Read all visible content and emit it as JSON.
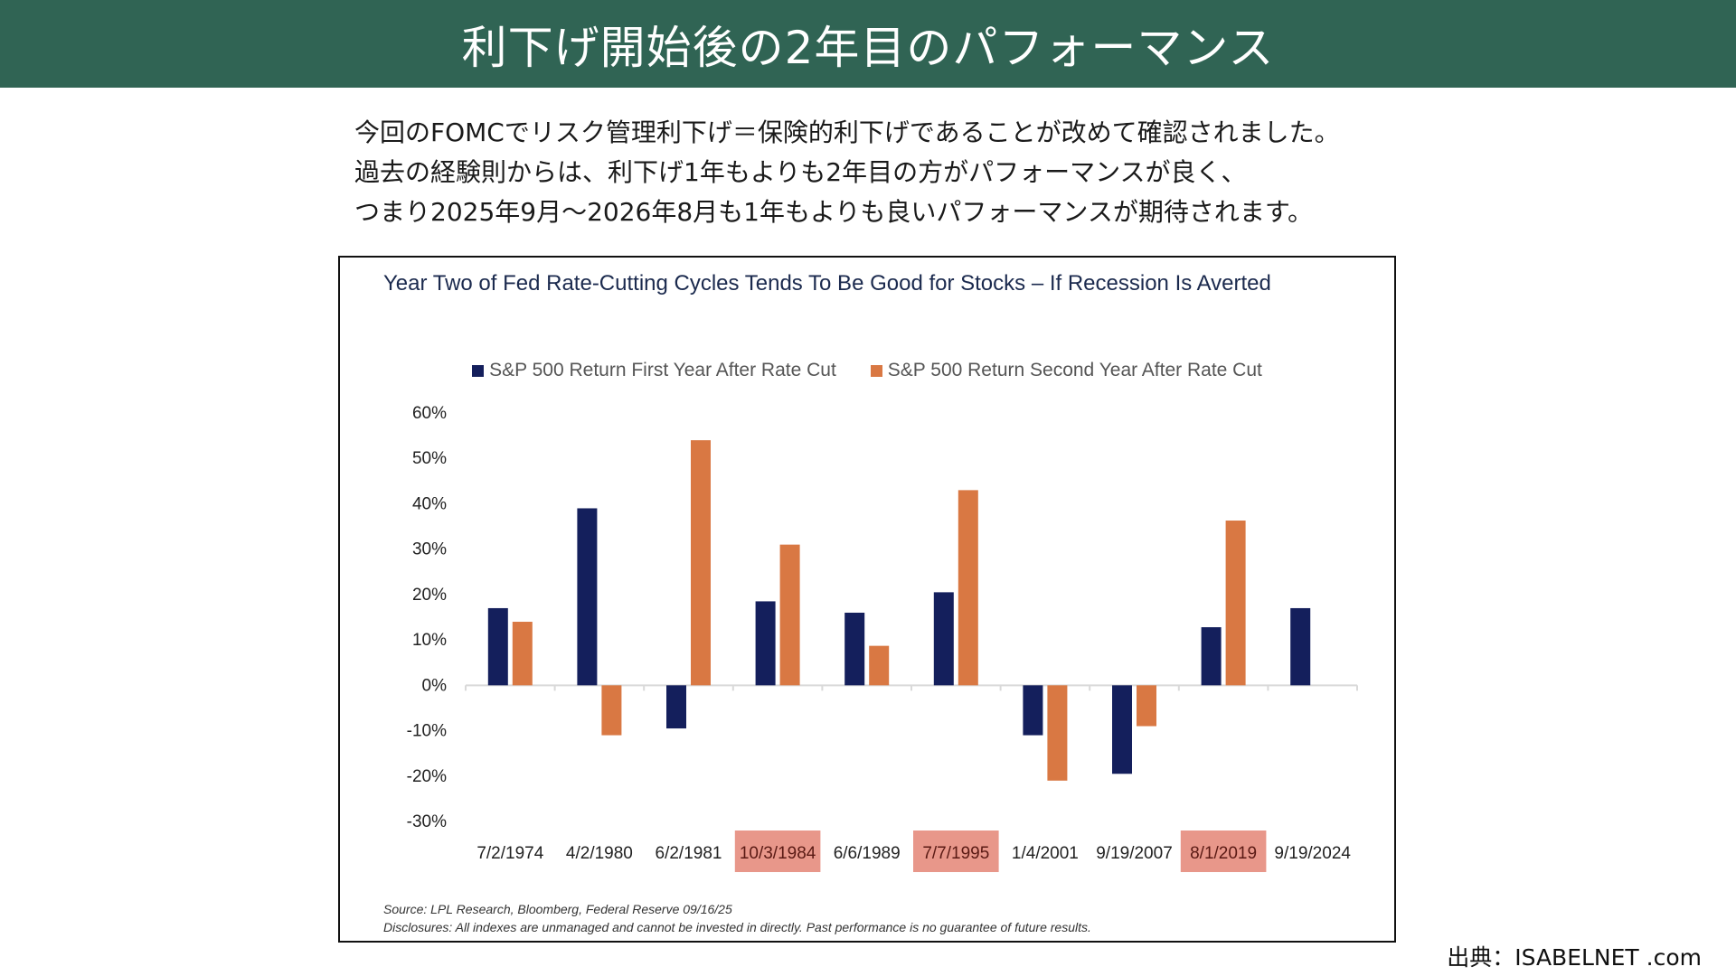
{
  "header": {
    "title": "利下げ開始後の2年目のパフォーマンス"
  },
  "intro": {
    "lines": [
      "今回のFOMCでリスク管理利下げ＝保険的利下げであることが改めて確認されました。",
      "過去の経験則からは、利下げ1年もよりも2年目の方がパフォーマンスが良く、",
      "つまり2025年9月～2026年8月も1年もよりも良いパフォーマンスが期待されます。"
    ]
  },
  "chart_data": {
    "type": "bar",
    "title": "Year Two of Fed Rate-Cutting Cycles Tends To Be Good for Stocks – If Recession Is Averted",
    "xlabel": "",
    "ylabel": "",
    "ylim": [
      -30,
      60
    ],
    "yticks": [
      60,
      50,
      40,
      30,
      20,
      10,
      0,
      -10,
      -20,
      -30
    ],
    "ytick_labels": [
      "60%",
      "50%",
      "40%",
      "30%",
      "20%",
      "10%",
      "0%",
      "-10%",
      "-20%",
      "-30%"
    ],
    "grid": false,
    "legend_position": "top-center",
    "categories": [
      "7/2/1974",
      "4/2/1980",
      "6/2/1981",
      "10/3/1984",
      "6/6/1989",
      "7/7/1995",
      "1/4/2001",
      "9/19/2007",
      "8/1/2019",
      "9/19/2024"
    ],
    "highlighted_categories": [
      "10/3/1984",
      "7/7/1995",
      "8/1/2019"
    ],
    "series": [
      {
        "name": "S&P 500 Return First Year After Rate Cut",
        "color": "#141f5c",
        "values": [
          17,
          39,
          -9.5,
          18.5,
          16,
          20.5,
          -11,
          -19.5,
          12.8,
          17
        ]
      },
      {
        "name": "S&P 500 Return Second Year After Rate Cut",
        "color": "#d97843",
        "values": [
          14,
          -11,
          54,
          31,
          8.7,
          43,
          -21,
          -9,
          36.3,
          null
        ]
      }
    ],
    "highlight_color": "#e8978a",
    "footnotes": [
      "Source: LPL Research, Bloomberg, Federal Reserve 09/16/25",
      "Disclosures: All indexes are unmanaged and cannot be invested in directly. Past performance is no guarantee of future results."
    ]
  },
  "credit": "出典：ISABELNET .com",
  "colors": {
    "header_bg": "#306454",
    "title_text": "#1b2a4e"
  }
}
